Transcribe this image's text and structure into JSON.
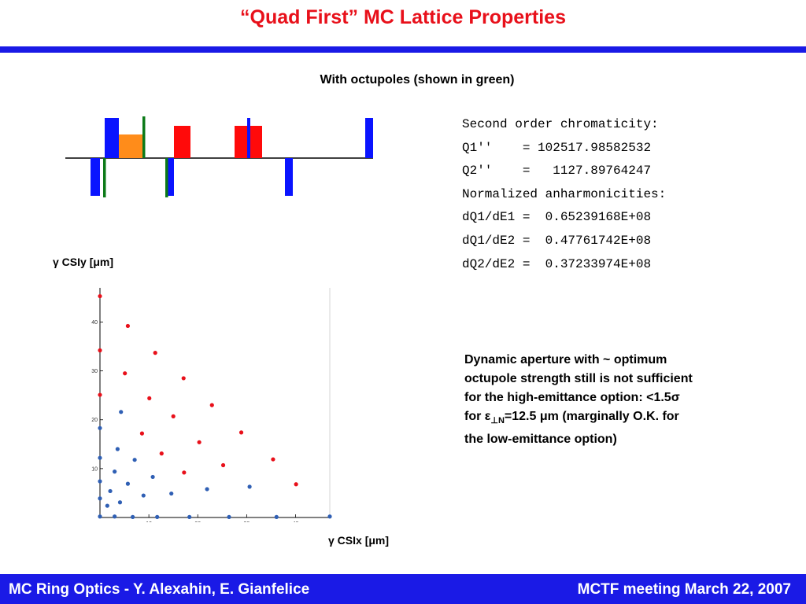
{
  "header": {
    "title": "“Quad First” MC Lattice Properties",
    "subtitle": "With octupoles (shown in green)"
  },
  "colors": {
    "title": "#e8101a",
    "band": "#1a1ae6",
    "quad": "#0a14ff",
    "dipole": "#ff0a0a",
    "orange_element": "#ff8c1a",
    "octupole": "#0c7a18",
    "red_points": "#e8101a",
    "blue_points": "#2f5fb4"
  },
  "chromaticity": {
    "lines": [
      "Second order chromaticity:",
      "Q1''    = 102517.98582532",
      "Q2''    =   1127.89764247",
      "Normalized anharmonicities:",
      "dQ1/dE1 =  0.65239168E+08",
      "dQ1/dE2 =  0.47761742E+08",
      "dQ2/dE2 =  0.37233974E+08"
    ]
  },
  "chart_data": {
    "type": "scatter",
    "ylabel": "γ CSIy [μm]",
    "xlabel": "γ CSIx [μm]",
    "xlim": [
      0,
      47
    ],
    "ylim": [
      0,
      47
    ],
    "x_ticks": [
      10,
      20,
      30,
      40
    ],
    "y_ticks": [
      10,
      20,
      30,
      40
    ],
    "x_tick_labels": [
      "10",
      "20",
      "30",
      "40"
    ],
    "y_tick_labels": [
      "10",
      "20",
      "30",
      "40"
    ],
    "series": [
      {
        "color": "#e8101a",
        "points": [
          [
            0,
            45.3
          ],
          [
            0,
            34.2
          ],
          [
            0,
            25.1
          ],
          [
            5.7,
            39.2
          ],
          [
            5.1,
            29.5
          ],
          [
            11.3,
            33.7
          ],
          [
            10.1,
            24.4
          ],
          [
            15.0,
            20.7
          ],
          [
            8.6,
            17.2
          ],
          [
            17.1,
            28.5
          ],
          [
            20.3,
            15.4
          ],
          [
            22.9,
            23.0
          ],
          [
            28.9,
            17.4
          ],
          [
            12.6,
            13.1
          ],
          [
            17.2,
            9.2
          ],
          [
            25.2,
            10.7
          ],
          [
            35.4,
            11.9
          ],
          [
            40.1,
            6.8
          ]
        ]
      },
      {
        "color": "#2f5fb4",
        "points": [
          [
            0,
            18.3
          ],
          [
            0,
            12.2
          ],
          [
            0,
            7.4
          ],
          [
            0,
            3.9
          ],
          [
            1.5,
            2.4
          ],
          [
            2.1,
            5.4
          ],
          [
            3.0,
            9.4
          ],
          [
            3.6,
            14.0
          ],
          [
            4.3,
            21.6
          ],
          [
            4.1,
            3.1
          ],
          [
            5.7,
            6.9
          ],
          [
            7.1,
            11.8
          ],
          [
            8.9,
            4.5
          ],
          [
            10.8,
            8.3
          ],
          [
            14.6,
            4.9
          ],
          [
            21.9,
            5.8
          ],
          [
            30.6,
            6.3
          ],
          [
            0,
            0.2
          ],
          [
            3.0,
            0.2
          ],
          [
            6.7,
            0.1
          ],
          [
            11.7,
            0.1
          ],
          [
            18.3,
            0.1
          ],
          [
            26.4,
            0.1
          ],
          [
            36.1,
            0.1
          ],
          [
            47.0,
            0.2
          ]
        ]
      }
    ]
  },
  "note": {
    "line1": "Dynamic aperture with ~ optimum",
    "line2": "octupole strength still is not sufficient",
    "line3_a": "for the high-emittance option: <1.5",
    "line3_sigma": "σ",
    "line4_a": "for ",
    "line4_eps": "ε",
    "line4_sub": "⊥N",
    "line4_b": "=12.5 ",
    "line4_mu": "μ",
    "line4_c": "m (marginally O.K. for",
    "line5": "the low-emittance option)"
  },
  "footer": {
    "left": "MC Ring Optics - Y. Alexahin, E. Gianfelice",
    "right": "MCTF meeting March 22, 2007"
  }
}
